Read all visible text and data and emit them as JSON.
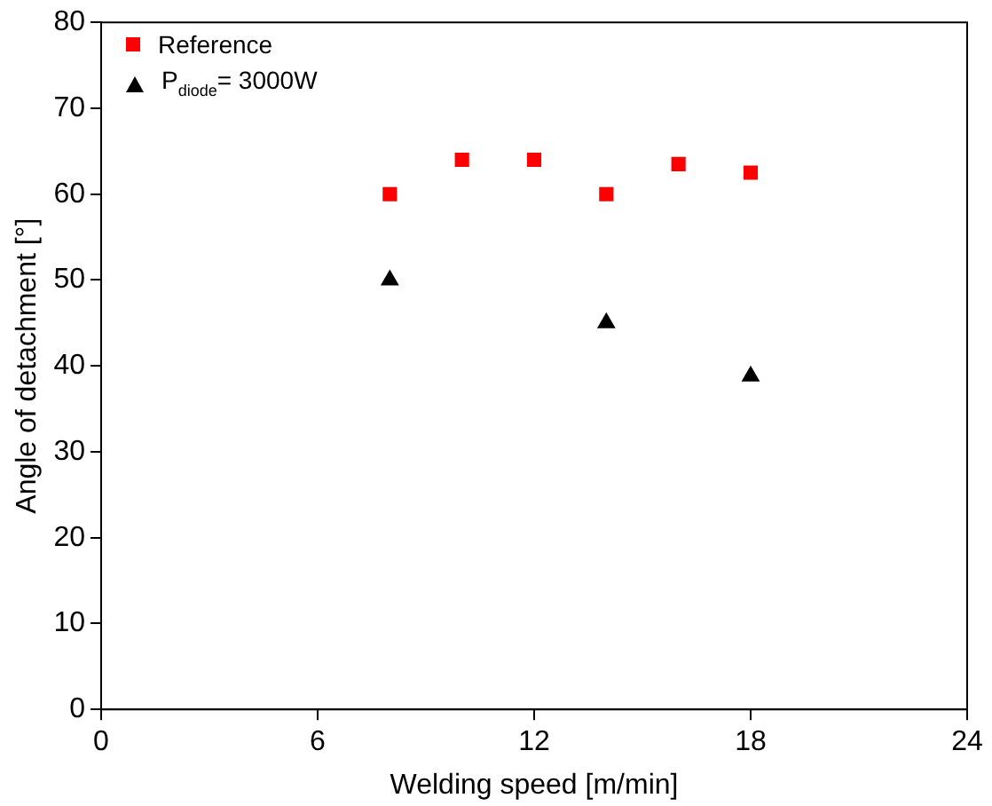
{
  "chart_data": {
    "type": "scatter",
    "xlabel": "Welding speed [m/min]",
    "ylabel": "Angle of detachment [°]",
    "xlim": [
      0,
      24
    ],
    "xticks": [
      0,
      6,
      12,
      18,
      24
    ],
    "ylim": [
      0,
      80
    ],
    "yticks": [
      0,
      10,
      20,
      30,
      40,
      50,
      60,
      70,
      80
    ],
    "legend": "top left",
    "series": [
      {
        "name": "Reference",
        "color": "#ff0000",
        "marker": "square",
        "x": [
          8,
          10,
          12,
          14,
          16,
          18
        ],
        "values": [
          60,
          64,
          64,
          60,
          63.5,
          62.5
        ]
      },
      {
        "name": "P$_{diode}$= 3000W",
        "color": "#000000",
        "marker": "triangle",
        "x": [
          8,
          14,
          18
        ],
        "values": [
          50,
          45,
          38.8
        ]
      }
    ]
  }
}
